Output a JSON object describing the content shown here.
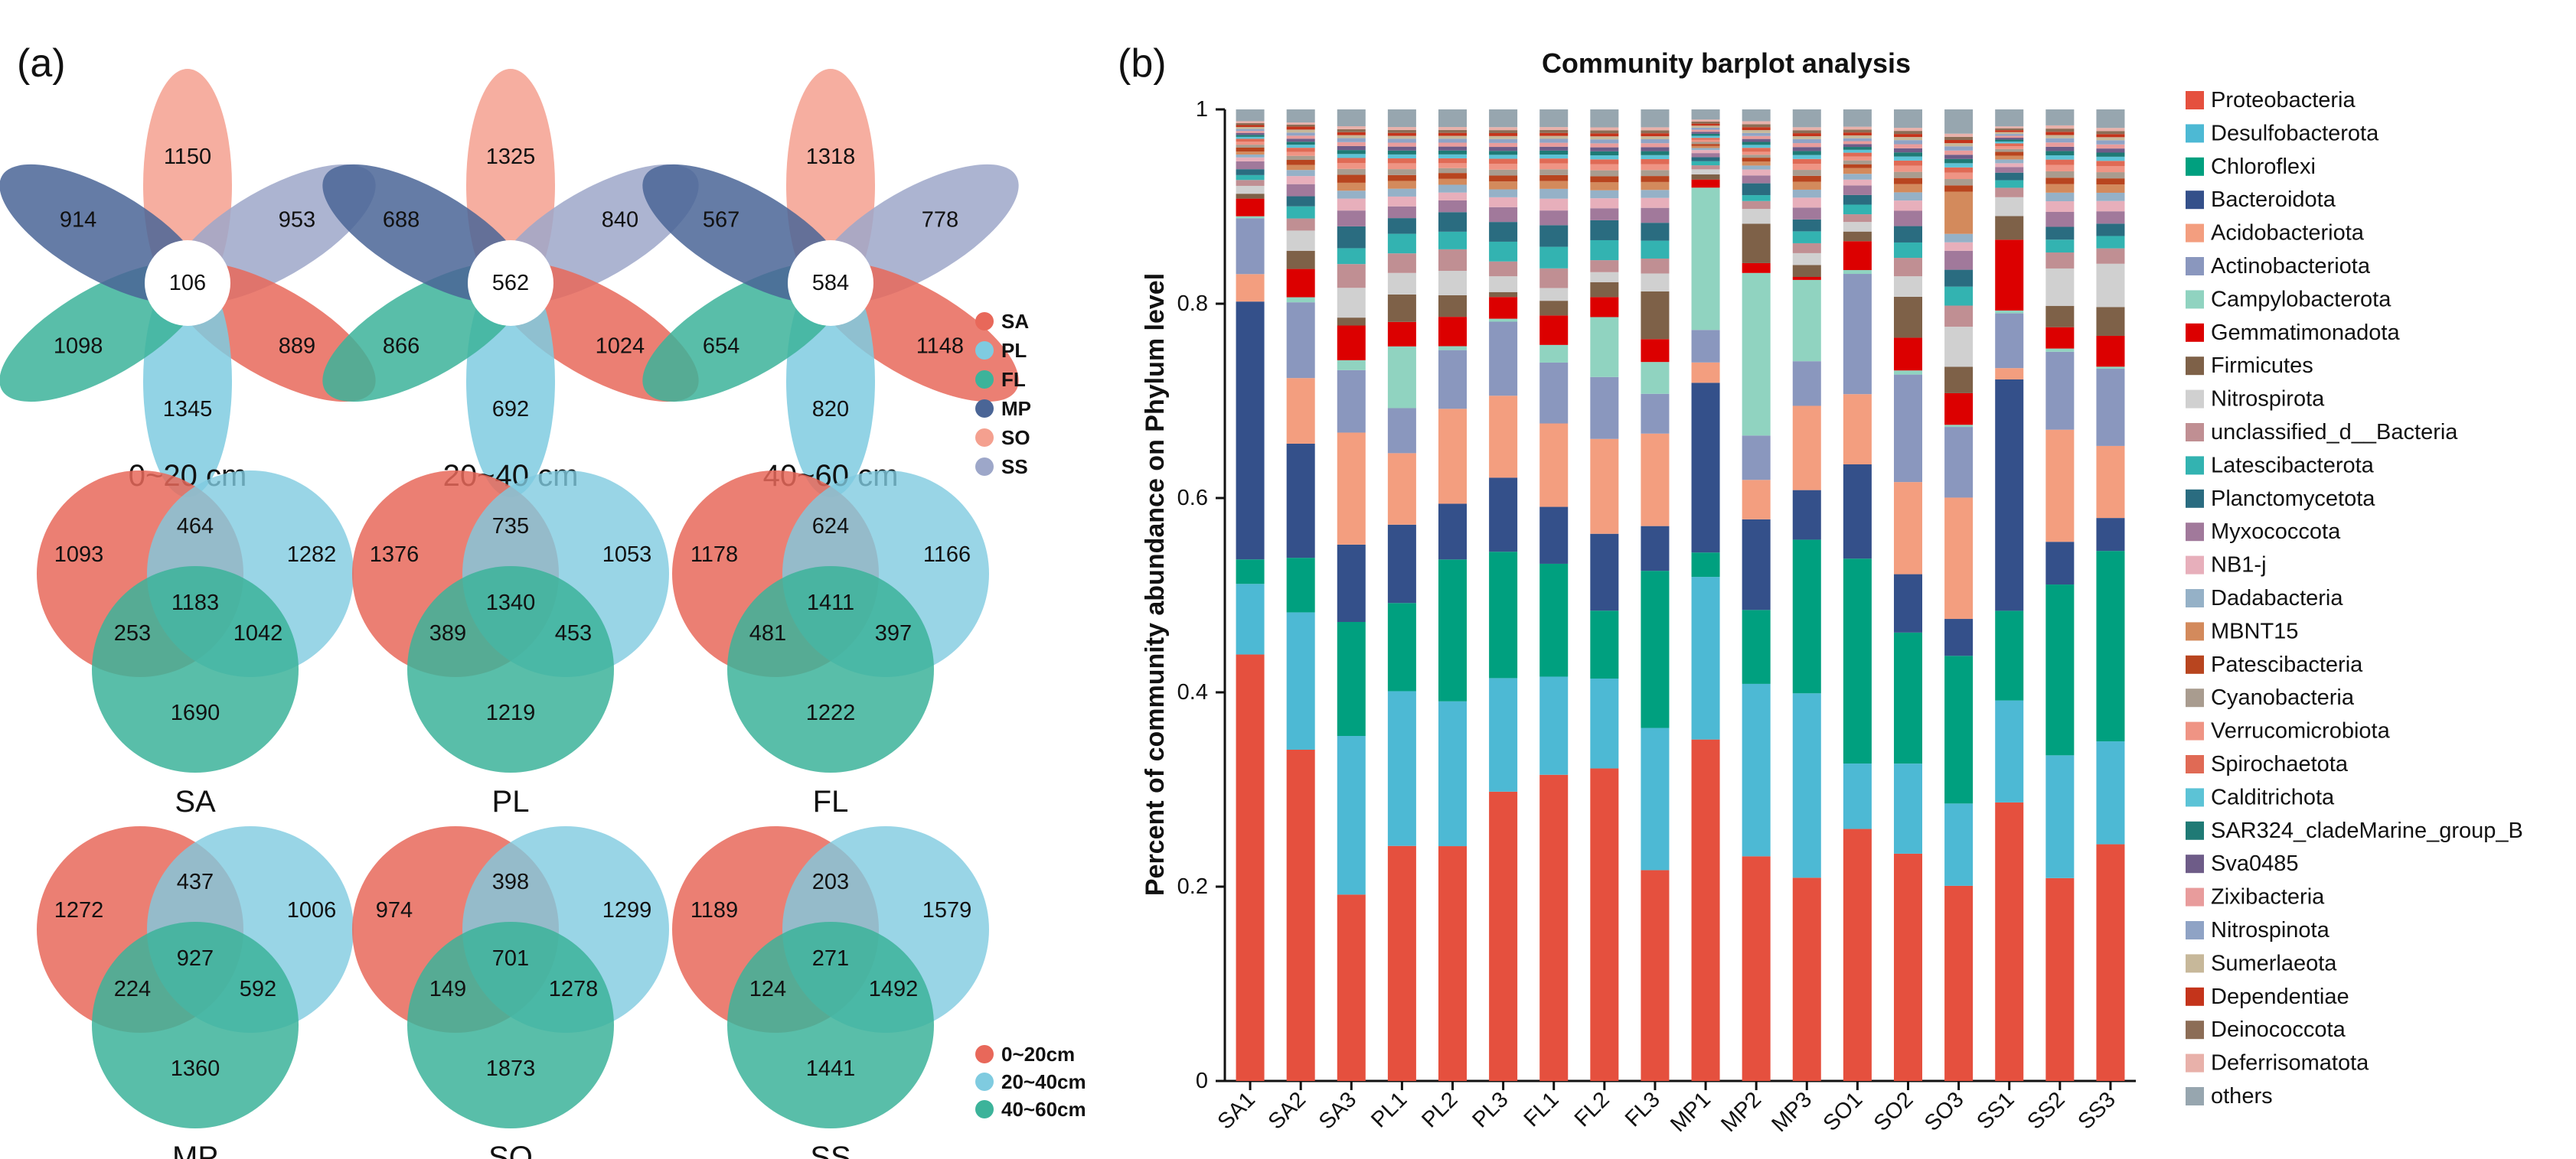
{
  "panel_a": {
    "label": "(a)",
    "flowers": [
      {
        "caption": "0~20 cm",
        "center": "106",
        "petals": {
          "SO": "1150",
          "SS": "953",
          "SA": "889",
          "PL": "1345",
          "FL": "1098",
          "MP": "914"
        }
      },
      {
        "caption": "20~40 cm",
        "center": "562",
        "petals": {
          "SO": "1325",
          "SS": "840",
          "SA": "1024",
          "PL": "692",
          "FL": "866",
          "MP": "688"
        }
      },
      {
        "caption": "40~60 cm",
        "center": "584",
        "petals": {
          "SO": "1318",
          "SS": "778",
          "SA": "1148",
          "PL": "820",
          "FL": "654",
          "MP": "567"
        }
      }
    ],
    "flower_legend": [
      {
        "label": "SA",
        "color": "#E8685A"
      },
      {
        "label": "PL",
        "color": "#7FCBE0"
      },
      {
        "label": "FL",
        "color": "#3CB39A"
      },
      {
        "label": "MP",
        "color": "#4A6596"
      },
      {
        "label": "SO",
        "color": "#F4A08F"
      },
      {
        "label": "SS",
        "color": "#9DA7C9"
      }
    ],
    "venns": [
      {
        "caption": "SA",
        "a_only": "1093",
        "ab": "464",
        "b_only": "1282",
        "abc": "1183",
        "ac": "253",
        "bc": "1042",
        "c_only": "1690"
      },
      {
        "caption": "PL",
        "a_only": "1376",
        "ab": "735",
        "b_only": "1053",
        "abc": "1340",
        "ac": "389",
        "bc": "453",
        "c_only": "1219"
      },
      {
        "caption": "FL",
        "a_only": "1178",
        "ab": "624",
        "b_only": "1166",
        "abc": "1411",
        "ac": "481",
        "bc": "397",
        "c_only": "1222"
      },
      {
        "caption": "MP",
        "a_only": "1272",
        "ab": "437",
        "b_only": "1006",
        "abc": "927",
        "ac": "224",
        "bc": "592",
        "c_only": "1360"
      },
      {
        "caption": "SO",
        "a_only": "974",
        "ab": "398",
        "b_only": "1299",
        "abc": "701",
        "ac": "149",
        "bc": "1278",
        "c_only": "1873"
      },
      {
        "caption": "SS",
        "a_only": "1189",
        "ab": "203",
        "b_only": "1579",
        "abc": "271",
        "ac": "124",
        "bc": "1492",
        "c_only": "1441"
      }
    ],
    "venn_legend": [
      {
        "label": "0~20cm",
        "color": "#E8685A"
      },
      {
        "label": "20~40cm",
        "color": "#7FCBE0"
      },
      {
        "label": "40~60cm",
        "color": "#3CB39A"
      }
    ]
  },
  "panel_b": {
    "label": "(b)"
  },
  "chart_data": {
    "type": "bar",
    "stacked": true,
    "title": "Community barplot analysis",
    "xlabel": "",
    "ylabel": "Percent of community abundance on Phylum level",
    "ylim": [
      0,
      1
    ],
    "yticks": [
      "0",
      "0.2",
      "0.4",
      "0.6",
      "0.8",
      "1"
    ],
    "categories": [
      "SA1",
      "SA2",
      "SA3",
      "PL1",
      "PL2",
      "PL3",
      "FL1",
      "FL2",
      "FL3",
      "MP1",
      "MP2",
      "MP3",
      "SO1",
      "SO2",
      "SO3",
      "SS1",
      "SS2",
      "SS3"
    ],
    "series": [
      {
        "name": "Proteobacteria",
        "color": "#E5503E",
        "values": [
          0.435,
          0.328,
          0.188,
          0.24,
          0.24,
          0.293,
          0.312,
          0.313,
          0.212,
          0.336,
          0.228,
          0.205,
          0.262,
          0.222,
          0.185,
          0.295,
          0.19,
          0.23
        ]
      },
      {
        "name": "Desulfobacterota",
        "color": "#4DB9D4",
        "values": [
          0.072,
          0.136,
          0.16,
          0.158,
          0.148,
          0.115,
          0.1,
          0.09,
          0.143,
          0.16,
          0.175,
          0.186,
          0.068,
          0.088,
          0.078,
          0.108,
          0.115,
          0.1
        ]
      },
      {
        "name": "Chloroflexi",
        "color": "#00A07F",
        "values": [
          0.025,
          0.054,
          0.115,
          0.09,
          0.145,
          0.128,
          0.115,
          0.068,
          0.158,
          0.024,
          0.075,
          0.155,
          0.213,
          0.128,
          0.14,
          0.095,
          0.16,
          0.185
        ]
      },
      {
        "name": "Bacteroidota",
        "color": "#34508A",
        "values": [
          0.263,
          0.113,
          0.078,
          0.08,
          0.057,
          0.075,
          0.058,
          0.077,
          0.045,
          0.167,
          0.092,
          0.05,
          0.098,
          0.057,
          0.035,
          0.245,
          0.04,
          0.032
        ]
      },
      {
        "name": "Acidobacteriota",
        "color": "#F39E7F",
        "values": [
          0.028,
          0.065,
          0.113,
          0.073,
          0.097,
          0.083,
          0.085,
          0.095,
          0.093,
          0.02,
          0.04,
          0.085,
          0.073,
          0.09,
          0.115,
          0.012,
          0.105,
          0.07
        ]
      },
      {
        "name": "Actinobacteriota",
        "color": "#8A97BE",
        "values": [
          0.057,
          0.075,
          0.063,
          0.046,
          0.06,
          0.075,
          0.062,
          0.062,
          0.04,
          0.032,
          0.045,
          0.045,
          0.125,
          0.105,
          0.067,
          0.058,
          0.073,
          0.075
        ]
      },
      {
        "name": "Campylobacterota",
        "color": "#90D3C0",
        "values": [
          0.002,
          0.005,
          0.01,
          0.063,
          0.004,
          0.003,
          0.018,
          0.06,
          0.032,
          0.14,
          0.165,
          0.082,
          0.004,
          0.004,
          0.002,
          0.003,
          0.003,
          0.002
        ]
      },
      {
        "name": "Gemmatimonadota",
        "color": "#DC0000",
        "values": [
          0.018,
          0.028,
          0.035,
          0.025,
          0.03,
          0.022,
          0.03,
          0.02,
          0.023,
          0.008,
          0.01,
          0.003,
          0.03,
          0.032,
          0.03,
          0.075,
          0.02,
          0.03
        ]
      },
      {
        "name": "Firmicutes",
        "color": "#7E6148",
        "values": [
          0.005,
          0.018,
          0.008,
          0.028,
          0.022,
          0.005,
          0.015,
          0.015,
          0.048,
          0.005,
          0.04,
          0.012,
          0.01,
          0.04,
          0.025,
          0.025,
          0.02,
          0.028
        ]
      },
      {
        "name": "Nitrospirota",
        "color": "#D0D0D0",
        "values": [
          0.008,
          0.02,
          0.03,
          0.022,
          0.025,
          0.016,
          0.013,
          0.01,
          0.018,
          0.005,
          0.015,
          0.012,
          0.01,
          0.02,
          0.038,
          0.02,
          0.035,
          0.042
        ]
      },
      {
        "name": "unclassified_d__Bacteria",
        "color": "#C08F93",
        "values": [
          0.006,
          0.012,
          0.024,
          0.02,
          0.022,
          0.015,
          0.02,
          0.012,
          0.015,
          0.004,
          0.008,
          0.01,
          0.008,
          0.018,
          0.02,
          0.01,
          0.015,
          0.015
        ]
      },
      {
        "name": "Latescibacterota",
        "color": "#33B3B1",
        "values": [
          0.005,
          0.012,
          0.016,
          0.02,
          0.018,
          0.02,
          0.022,
          0.02,
          0.018,
          0.004,
          0.006,
          0.012,
          0.01,
          0.015,
          0.018,
          0.008,
          0.012,
          0.012
        ]
      },
      {
        "name": "Planctomycetota",
        "color": "#2A6C80",
        "values": [
          0.006,
          0.01,
          0.022,
          0.016,
          0.02,
          0.02,
          0.022,
          0.02,
          0.018,
          0.004,
          0.012,
          0.012,
          0.01,
          0.016,
          0.016,
          0.008,
          0.012,
          0.012
        ]
      },
      {
        "name": "Myxococcota",
        "color": "#A1799B",
        "values": [
          0.008,
          0.012,
          0.016,
          0.012,
          0.012,
          0.015,
          0.015,
          0.012,
          0.015,
          0.004,
          0.008,
          0.012,
          0.01,
          0.015,
          0.018,
          0.006,
          0.014,
          0.012
        ]
      },
      {
        "name": "NB1-j",
        "color": "#E7AFBB",
        "values": [
          0.004,
          0.008,
          0.012,
          0.01,
          0.008,
          0.01,
          0.012,
          0.01,
          0.01,
          0.003,
          0.006,
          0.01,
          0.006,
          0.01,
          0.008,
          0.004,
          0.01,
          0.01
        ]
      },
      {
        "name": "Dadabacteria",
        "color": "#95B1C7",
        "values": [
          0.003,
          0.006,
          0.008,
          0.008,
          0.008,
          0.008,
          0.01,
          0.008,
          0.008,
          0.002,
          0.004,
          0.008,
          0.006,
          0.008,
          0.008,
          0.004,
          0.008,
          0.008
        ]
      },
      {
        "name": "MBNT15",
        "color": "#D38A5C",
        "values": [
          0.003,
          0.005,
          0.008,
          0.008,
          0.006,
          0.008,
          0.008,
          0.008,
          0.008,
          0.002,
          0.004,
          0.008,
          0.006,
          0.008,
          0.04,
          0.004,
          0.008,
          0.008
        ]
      },
      {
        "name": "Patescibacteria",
        "color": "#B8451F",
        "values": [
          0.004,
          0.005,
          0.008,
          0.006,
          0.006,
          0.006,
          0.006,
          0.006,
          0.006,
          0.002,
          0.004,
          0.006,
          0.004,
          0.006,
          0.006,
          0.004,
          0.006,
          0.006
        ]
      },
      {
        "name": "Cyanobacteria",
        "color": "#A99C8F",
        "values": [
          0.003,
          0.004,
          0.006,
          0.006,
          0.005,
          0.006,
          0.006,
          0.006,
          0.006,
          0.002,
          0.003,
          0.006,
          0.004,
          0.006,
          0.006,
          0.003,
          0.006,
          0.006
        ]
      },
      {
        "name": "Verrucomicrobiota",
        "color": "#EF9484",
        "values": [
          0.003,
          0.004,
          0.006,
          0.006,
          0.005,
          0.006,
          0.006,
          0.006,
          0.006,
          0.002,
          0.003,
          0.006,
          0.004,
          0.006,
          0.006,
          0.003,
          0.006,
          0.006
        ]
      },
      {
        "name": "Spirochaetota",
        "color": "#E06A55",
        "values": [
          0.003,
          0.004,
          0.005,
          0.005,
          0.005,
          0.005,
          0.005,
          0.005,
          0.005,
          0.002,
          0.004,
          0.005,
          0.004,
          0.005,
          0.005,
          0.003,
          0.005,
          0.005
        ]
      },
      {
        "name": "Calditrichota",
        "color": "#5CC3D6",
        "values": [
          0.002,
          0.003,
          0.004,
          0.004,
          0.004,
          0.004,
          0.004,
          0.004,
          0.004,
          0.002,
          0.003,
          0.004,
          0.003,
          0.004,
          0.004,
          0.002,
          0.004,
          0.004
        ]
      },
      {
        "name": "SAR324_cladeMarine_group_B",
        "color": "#1F7A75",
        "values": [
          0.002,
          0.003,
          0.004,
          0.004,
          0.004,
          0.004,
          0.004,
          0.004,
          0.004,
          0.002,
          0.003,
          0.004,
          0.003,
          0.004,
          0.004,
          0.002,
          0.004,
          0.004
        ]
      },
      {
        "name": "Sva0485",
        "color": "#6E5C88",
        "values": [
          0.002,
          0.003,
          0.004,
          0.004,
          0.004,
          0.004,
          0.004,
          0.004,
          0.004,
          0.002,
          0.003,
          0.004,
          0.003,
          0.004,
          0.004,
          0.002,
          0.004,
          0.004
        ]
      },
      {
        "name": "Zixibacteria",
        "color": "#E89C9C",
        "values": [
          0.002,
          0.003,
          0.004,
          0.004,
          0.004,
          0.004,
          0.004,
          0.004,
          0.004,
          0.002,
          0.003,
          0.004,
          0.003,
          0.004,
          0.004,
          0.002,
          0.004,
          0.004
        ]
      },
      {
        "name": "Nitrospinota",
        "color": "#8FA3C5",
        "values": [
          0.002,
          0.003,
          0.004,
          0.004,
          0.004,
          0.004,
          0.004,
          0.004,
          0.004,
          0.002,
          0.003,
          0.004,
          0.003,
          0.004,
          0.004,
          0.002,
          0.004,
          0.004
        ]
      },
      {
        "name": "Sumerlaeota",
        "color": "#C7B89A",
        "values": [
          0.002,
          0.003,
          0.003,
          0.003,
          0.003,
          0.003,
          0.003,
          0.003,
          0.003,
          0.002,
          0.003,
          0.003,
          0.003,
          0.003,
          0.003,
          0.002,
          0.003,
          0.003
        ]
      },
      {
        "name": "Dependentiae",
        "color": "#C4341B",
        "values": [
          0.002,
          0.003,
          0.003,
          0.003,
          0.003,
          0.003,
          0.003,
          0.003,
          0.003,
          0.002,
          0.003,
          0.003,
          0.003,
          0.003,
          0.003,
          0.002,
          0.003,
          0.003
        ]
      },
      {
        "name": "Deinococcota",
        "color": "#8C6D56",
        "values": [
          0.002,
          0.002,
          0.003,
          0.003,
          0.003,
          0.003,
          0.003,
          0.003,
          0.003,
          0.002,
          0.003,
          0.003,
          0.003,
          0.003,
          0.003,
          0.002,
          0.003,
          0.003
        ]
      },
      {
        "name": "Deferrisomatota",
        "color": "#E8B1AA",
        "values": [
          0.002,
          0.002,
          0.003,
          0.003,
          0.003,
          0.003,
          0.003,
          0.003,
          0.003,
          0.002,
          0.003,
          0.003,
          0.003,
          0.003,
          0.003,
          0.002,
          0.003,
          0.003
        ]
      },
      {
        "name": "others",
        "color": "#97A6AF",
        "values": [
          0.012,
          0.013,
          0.017,
          0.018,
          0.018,
          0.018,
          0.018,
          0.018,
          0.018,
          0.01,
          0.012,
          0.018,
          0.018,
          0.018,
          0.023,
          0.018,
          0.015,
          0.018
        ]
      }
    ]
  }
}
